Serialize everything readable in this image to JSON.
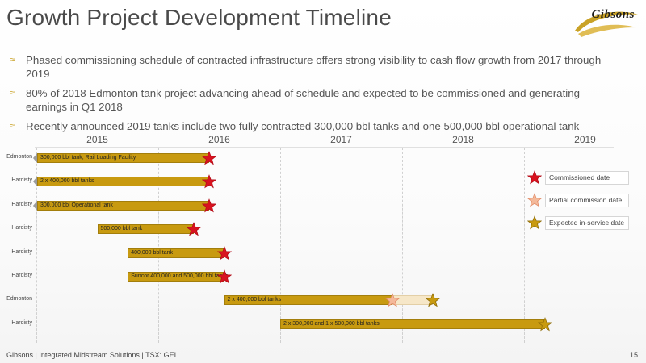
{
  "slide": {
    "title": "Growth Project Development Timeline",
    "logo_text": "Gibsons",
    "bullets": [
      "Phased commissioning schedule of contracted infrastructure offers strong visibility to cash flow growth from 2017 through 2019",
      "80% of 2018 Edmonton tank project advancing ahead of schedule and expected to be commissioned and generating earnings in Q1 2018",
      "Recently announced 2019 tanks include two fully contracted 300,000 bbl tanks and one 500,000 bbl operational tank"
    ],
    "bullet_mark": "≈"
  },
  "timeline": {
    "years": [
      "2015",
      "2016",
      "2017",
      "2018",
      "2019"
    ],
    "rows": [
      {
        "location": "Edmonton",
        "label": "300,000 bbl tank, Rail Loading Facility",
        "start": 2015.0,
        "end": 2016.42,
        "arrow": true,
        "stars": [
          {
            "type": "commissioned",
            "at": 2016.42
          }
        ]
      },
      {
        "location": "Hardisty",
        "label": "2 x 400,000 bbl tanks",
        "start": 2015.0,
        "end": 2016.42,
        "arrow": true,
        "stars": [
          {
            "type": "commissioned",
            "at": 2016.42
          }
        ]
      },
      {
        "location": "Hardisty",
        "label": "300,000 bbl Operational tank",
        "start": 2015.0,
        "end": 2016.42,
        "arrow": true,
        "stars": [
          {
            "type": "commissioned",
            "at": 2016.42
          }
        ]
      },
      {
        "location": "Hardisty",
        "label": "500,000 bbl tank",
        "start": 2015.5,
        "end": 2016.29,
        "arrow": false,
        "stars": [
          {
            "type": "commissioned",
            "at": 2016.29
          }
        ]
      },
      {
        "location": "Hardisty",
        "label": "400,000 bbl tank",
        "start": 2015.75,
        "end": 2016.54,
        "arrow": false,
        "stars": [
          {
            "type": "commissioned",
            "at": 2016.54
          }
        ]
      },
      {
        "location": "Hardisty",
        "label": "Suncor 400,000 and 500,000 bbl tanks",
        "start": 2015.75,
        "end": 2016.54,
        "arrow": false,
        "stars": [
          {
            "type": "commissioned",
            "at": 2016.54
          }
        ]
      },
      {
        "location": "Edmonton",
        "label": "2 x 400,000 bbl tanks",
        "start": 2016.54,
        "end": 2017.92,
        "partial_end": 2018.25,
        "arrow": false,
        "stars": [
          {
            "type": "partial",
            "at": 2017.92
          },
          {
            "type": "expected",
            "at": 2018.25
          }
        ]
      },
      {
        "location": "Hardisty",
        "label": "2 x 300,000 and 1 x 500,000 bbl tanks",
        "start": 2017.0,
        "end": 2019.17,
        "arrow": false,
        "stars": [
          {
            "type": "expected",
            "at": 2019.17
          }
        ]
      }
    ],
    "legend": [
      {
        "type": "commissioned",
        "label": "Commissioned date"
      },
      {
        "type": "partial",
        "label": "Partial commission date"
      },
      {
        "type": "expected",
        "label": "Expected in-service date"
      }
    ],
    "colors": {
      "bar": "#c89a10",
      "commissioned_fill": "#d9121f",
      "commissioned_stroke": "#b30d18",
      "partial_fill": "#f4b99a",
      "partial_stroke": "#e08a66",
      "expected_fill": "#c89a10",
      "expected_stroke": "#8f6d08"
    }
  },
  "footer": {
    "text": "Gibsons | Integrated Midstream Solutions | TSX: GEI",
    "page": "15"
  }
}
